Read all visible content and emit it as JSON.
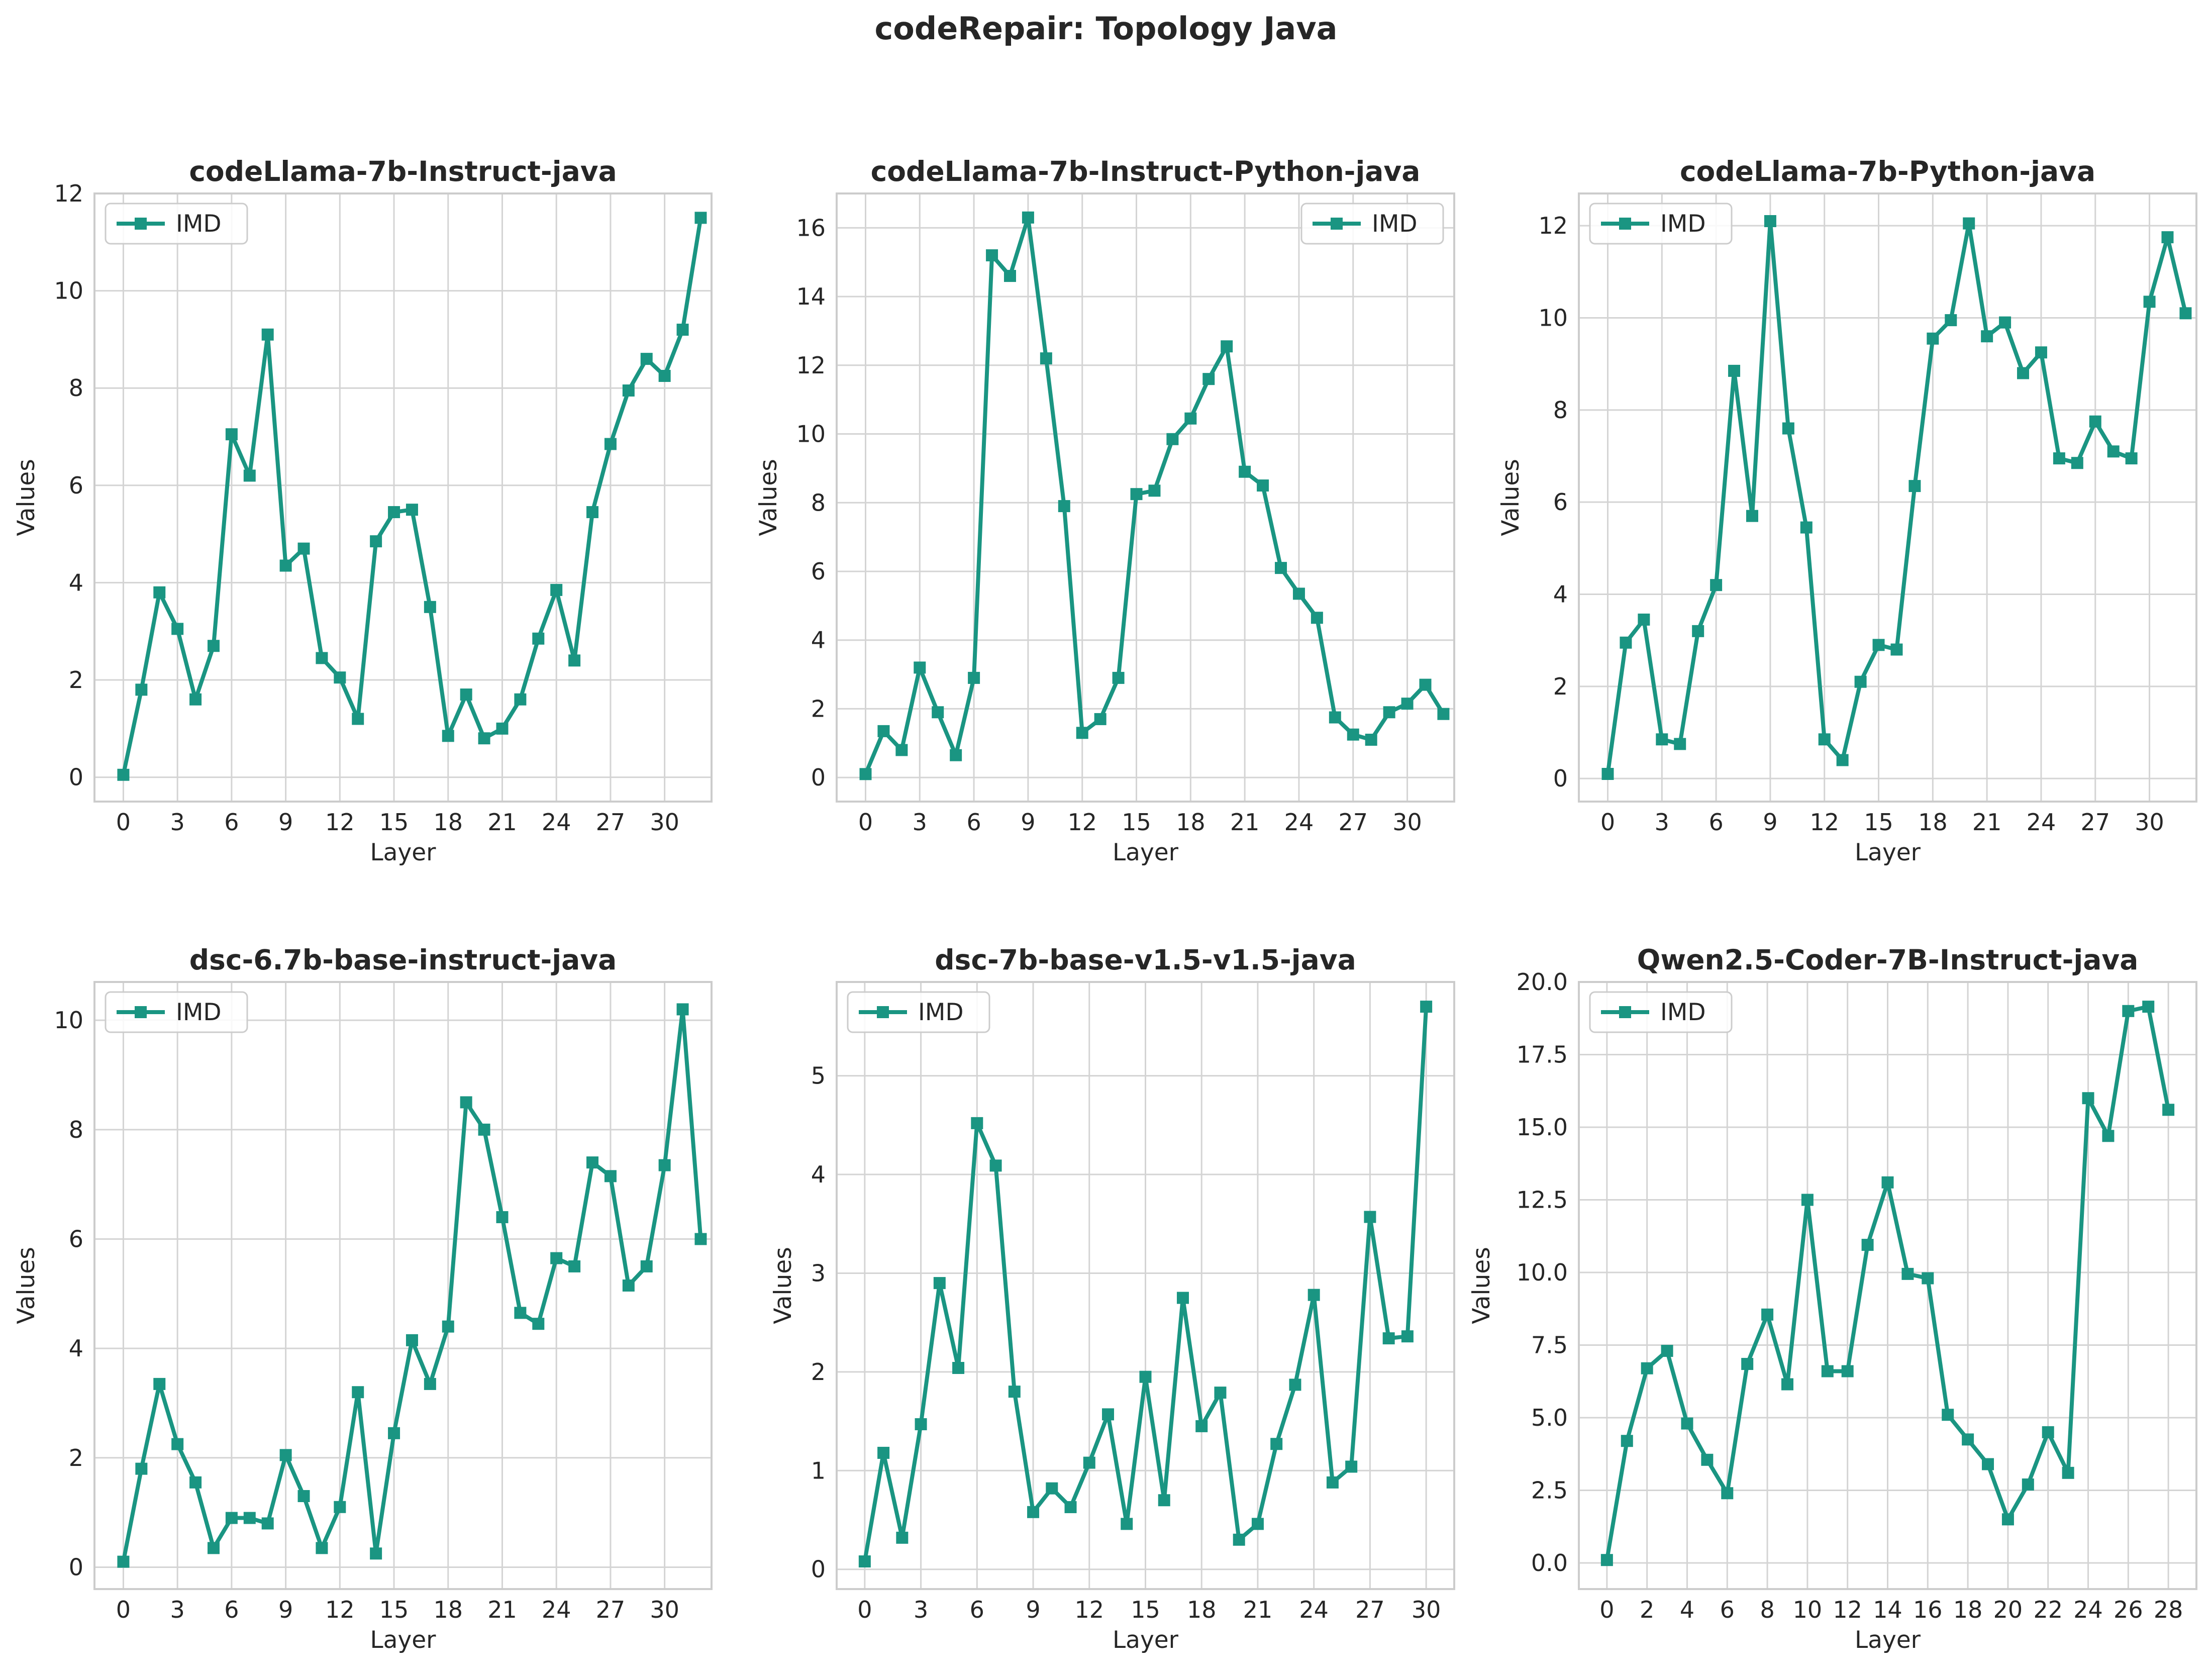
{
  "suptitle": "codeRepair: Topology Java",
  "chart_data": [
    {
      "type": "line",
      "title": "codeLlama-7b-Instruct-java",
      "xlabel": "Layer",
      "ylabel": "Values",
      "xlim": [
        -1.6,
        32.6
      ],
      "ylim": [
        -0.5,
        12.0
      ],
      "xticks": [
        0,
        3,
        6,
        9,
        12,
        15,
        18,
        21,
        24,
        27,
        30
      ],
      "xtick_labels": [
        "0",
        "3",
        "6",
        "9",
        "12",
        "15",
        "18",
        "21",
        "24",
        "27",
        "30"
      ],
      "yticks": [
        0,
        2,
        4,
        6,
        8,
        10,
        12
      ],
      "ytick_labels": [
        "0",
        "2",
        "4",
        "6",
        "8",
        "10",
        "12"
      ],
      "legend": "upper left",
      "series": [
        {
          "name": "IMD",
          "color": "#1a9582",
          "x": [
            0,
            1,
            2,
            3,
            4,
            5,
            6,
            7,
            8,
            9,
            10,
            11,
            12,
            13,
            14,
            15,
            16,
            17,
            18,
            19,
            20,
            21,
            22,
            23,
            24,
            25,
            26,
            27,
            28,
            29,
            30,
            31,
            32
          ],
          "values": [
            0.05,
            1.8,
            3.8,
            3.05,
            1.6,
            2.7,
            7.05,
            6.2,
            9.1,
            4.35,
            4.7,
            2.45,
            2.05,
            1.2,
            4.85,
            5.45,
            5.5,
            3.5,
            0.85,
            1.7,
            0.8,
            1.0,
            1.6,
            2.85,
            3.85,
            2.4,
            5.45,
            6.85,
            7.95,
            8.6,
            8.25,
            9.2,
            11.5
          ]
        }
      ]
    },
    {
      "type": "line",
      "title": "codeLlama-7b-Instruct-Python-java",
      "xlabel": "Layer",
      "ylabel": "Values",
      "xlim": [
        -1.6,
        32.6
      ],
      "ylim": [
        -0.7,
        17.0
      ],
      "xticks": [
        0,
        3,
        6,
        9,
        12,
        15,
        18,
        21,
        24,
        27,
        30
      ],
      "xtick_labels": [
        "0",
        "3",
        "6",
        "9",
        "12",
        "15",
        "18",
        "21",
        "24",
        "27",
        "30"
      ],
      "yticks": [
        0,
        2,
        4,
        6,
        8,
        10,
        12,
        14,
        16
      ],
      "ytick_labels": [
        "0",
        "2",
        "4",
        "6",
        "8",
        "10",
        "12",
        "14",
        "16"
      ],
      "legend": "upper right",
      "series": [
        {
          "name": "IMD",
          "color": "#1a9582",
          "x": [
            0,
            1,
            2,
            3,
            4,
            5,
            6,
            7,
            8,
            9,
            10,
            11,
            12,
            13,
            14,
            15,
            16,
            17,
            18,
            19,
            20,
            21,
            22,
            23,
            24,
            25,
            26,
            27,
            28,
            29,
            30,
            31,
            32
          ],
          "values": [
            0.1,
            1.35,
            0.8,
            3.2,
            1.9,
            0.65,
            2.9,
            15.2,
            14.6,
            16.3,
            12.2,
            7.9,
            1.3,
            1.7,
            2.9,
            8.25,
            8.35,
            9.85,
            10.45,
            11.6,
            12.55,
            8.9,
            8.5,
            6.1,
            5.35,
            4.65,
            1.75,
            1.25,
            1.1,
            1.9,
            2.15,
            2.7,
            1.85
          ]
        }
      ]
    },
    {
      "type": "line",
      "title": "codeLlama-7b-Python-java",
      "xlabel": "Layer",
      "ylabel": "Values",
      "xlim": [
        -1.6,
        32.6
      ],
      "ylim": [
        -0.5,
        12.7
      ],
      "xticks": [
        0,
        3,
        6,
        9,
        12,
        15,
        18,
        21,
        24,
        27,
        30
      ],
      "xtick_labels": [
        "0",
        "3",
        "6",
        "9",
        "12",
        "15",
        "18",
        "21",
        "24",
        "27",
        "30"
      ],
      "yticks": [
        0,
        2,
        4,
        6,
        8,
        10,
        12
      ],
      "ytick_labels": [
        "0",
        "2",
        "4",
        "6",
        "8",
        "10",
        "12"
      ],
      "legend": "upper left",
      "series": [
        {
          "name": "IMD",
          "color": "#1a9582",
          "x": [
            0,
            1,
            2,
            3,
            4,
            5,
            6,
            7,
            8,
            9,
            10,
            11,
            12,
            13,
            14,
            15,
            16,
            17,
            18,
            19,
            20,
            21,
            22,
            23,
            24,
            25,
            26,
            27,
            28,
            29,
            30,
            31,
            32
          ],
          "values": [
            0.1,
            2.95,
            3.45,
            0.85,
            0.75,
            3.2,
            4.2,
            8.85,
            5.7,
            12.1,
            7.6,
            5.45,
            0.85,
            0.4,
            2.1,
            2.9,
            2.8,
            6.35,
            9.55,
            9.95,
            12.05,
            9.6,
            9.9,
            8.8,
            9.25,
            6.95,
            6.85,
            7.75,
            7.1,
            6.95,
            10.35,
            11.75,
            10.1
          ]
        }
      ]
    },
    {
      "type": "line",
      "title": "dsc-6.7b-base-instruct-java",
      "xlabel": "Layer",
      "ylabel": "Values",
      "xlim": [
        -1.6,
        32.6
      ],
      "ylim": [
        -0.4,
        10.7
      ],
      "xticks": [
        0,
        3,
        6,
        9,
        12,
        15,
        18,
        21,
        24,
        27,
        30
      ],
      "xtick_labels": [
        "0",
        "3",
        "6",
        "9",
        "12",
        "15",
        "18",
        "21",
        "24",
        "27",
        "30"
      ],
      "yticks": [
        0,
        2,
        4,
        6,
        8,
        10
      ],
      "ytick_labels": [
        "0",
        "2",
        "4",
        "6",
        "8",
        "10"
      ],
      "legend": "upper left",
      "series": [
        {
          "name": "IMD",
          "color": "#1a9582",
          "x": [
            0,
            1,
            2,
            3,
            4,
            5,
            6,
            7,
            8,
            9,
            10,
            11,
            12,
            13,
            14,
            15,
            16,
            17,
            18,
            19,
            20,
            21,
            22,
            23,
            24,
            25,
            26,
            27,
            28,
            29,
            30,
            31,
            32
          ],
          "values": [
            0.1,
            1.8,
            3.35,
            2.25,
            1.55,
            0.35,
            0.9,
            0.9,
            0.8,
            2.05,
            1.3,
            0.35,
            1.1,
            3.2,
            0.25,
            2.45,
            4.15,
            3.35,
            4.4,
            8.5,
            8.0,
            6.4,
            4.65,
            4.45,
            5.65,
            5.5,
            7.4,
            7.15,
            5.15,
            5.5,
            7.35,
            10.2,
            6.0
          ]
        }
      ]
    },
    {
      "type": "line",
      "title": "dsc-7b-base-v1.5-v1.5-java",
      "xlabel": "Layer",
      "ylabel": "Values",
      "xlim": [
        -1.5,
        31.5
      ],
      "ylim": [
        -0.2,
        5.95
      ],
      "xticks": [
        0,
        3,
        6,
        9,
        12,
        15,
        18,
        21,
        24,
        27,
        30
      ],
      "xtick_labels": [
        "0",
        "3",
        "6",
        "9",
        "12",
        "15",
        "18",
        "21",
        "24",
        "27",
        "30"
      ],
      "yticks": [
        0,
        1,
        2,
        3,
        4,
        5
      ],
      "ytick_labels": [
        "0",
        "1",
        "2",
        "3",
        "4",
        "5"
      ],
      "legend": "upper left",
      "series": [
        {
          "name": "IMD",
          "color": "#1a9582",
          "x": [
            0,
            1,
            2,
            3,
            4,
            5,
            6,
            7,
            8,
            9,
            10,
            11,
            12,
            13,
            14,
            15,
            16,
            17,
            18,
            19,
            20,
            21,
            22,
            23,
            24,
            25,
            26,
            27,
            28,
            29,
            30
          ],
          "values": [
            0.08,
            1.18,
            0.32,
            1.47,
            2.9,
            2.04,
            4.52,
            4.09,
            1.8,
            0.58,
            0.82,
            0.63,
            1.08,
            1.57,
            0.46,
            1.95,
            0.7,
            2.75,
            1.45,
            1.79,
            0.3,
            0.46,
            1.27,
            1.87,
            2.78,
            0.88,
            1.04,
            3.57,
            2.34,
            2.36,
            5.7
          ]
        }
      ]
    },
    {
      "type": "line",
      "title": "Qwen2.5-Coder-7B-Instruct-java",
      "xlabel": "Layer",
      "ylabel": "Values",
      "xlim": [
        -1.4,
        29.4
      ],
      "ylim": [
        -0.9,
        20.0
      ],
      "xticks": [
        0,
        2,
        4,
        6,
        8,
        10,
        12,
        14,
        16,
        18,
        20,
        22,
        24,
        26,
        28
      ],
      "xtick_labels": [
        "0",
        "2",
        "4",
        "6",
        "8",
        "10",
        "12",
        "14",
        "16",
        "18",
        "20",
        "22",
        "24",
        "26",
        "28"
      ],
      "yticks": [
        0,
        2.5,
        5,
        7.5,
        10,
        12.5,
        15,
        17.5,
        20
      ],
      "ytick_labels": [
        "0.0",
        "2.5",
        "5.0",
        "7.5",
        "10.0",
        "12.5",
        "15.0",
        "17.5",
        "20.0"
      ],
      "legend": "upper left",
      "series": [
        {
          "name": "IMD",
          "color": "#1a9582",
          "x": [
            0,
            1,
            2,
            3,
            4,
            5,
            6,
            7,
            8,
            9,
            10,
            11,
            12,
            13,
            14,
            15,
            16,
            17,
            18,
            19,
            20,
            21,
            22,
            23,
            24,
            25,
            26,
            27,
            28
          ],
          "values": [
            0.1,
            4.2,
            6.7,
            7.3,
            4.8,
            3.55,
            2.4,
            6.85,
            8.55,
            6.15,
            12.5,
            6.6,
            6.6,
            10.95,
            13.1,
            9.95,
            9.8,
            5.1,
            4.25,
            3.4,
            1.5,
            2.7,
            4.5,
            3.1,
            16.0,
            14.7,
            19.0,
            19.15,
            15.6
          ]
        }
      ]
    }
  ]
}
